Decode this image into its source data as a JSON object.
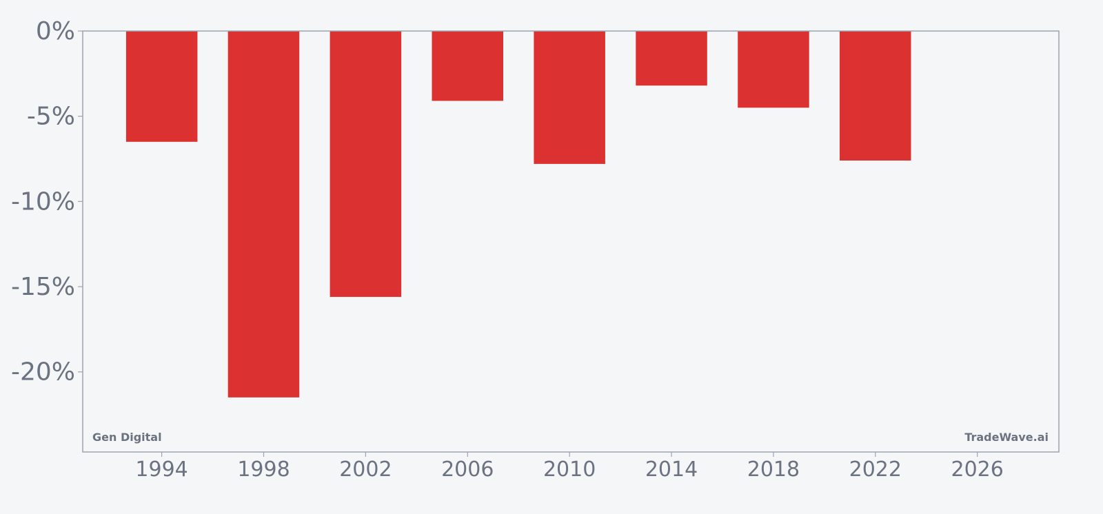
{
  "chart_data": {
    "type": "bar",
    "title": "",
    "xlabel": "",
    "ylabel": "",
    "x": [
      1994,
      1998,
      2002,
      2006,
      2010,
      2014,
      2018,
      2022
    ],
    "values": [
      -6.5,
      -21.5,
      -15.6,
      -4.1,
      -7.8,
      -3.2,
      -4.5,
      -7.6
    ],
    "xlim": [
      1990.9,
      2029.2
    ],
    "ylim": [
      -24.7,
      0
    ],
    "bar_width_years": 2.8,
    "x_ticks": [
      1994,
      1998,
      2002,
      2006,
      2010,
      2014,
      2018,
      2022,
      2026
    ],
    "x_tick_labels": [
      "1994",
      "1998",
      "2002",
      "2006",
      "2010",
      "2014",
      "2018",
      "2022",
      "2026"
    ],
    "y_ticks": [
      0,
      -5,
      -10,
      -15,
      -20
    ],
    "y_tick_labels": [
      "0%",
      "-5%",
      "-10%",
      "-15%",
      "-20%"
    ],
    "grid": false,
    "colors": {
      "bar": "#dc3131",
      "axis": "#9ca3af",
      "text": "#6b7280",
      "background": "#f4f6f8"
    }
  },
  "watermarks": {
    "left": "Gen Digital",
    "right": "TradeWave.ai"
  }
}
